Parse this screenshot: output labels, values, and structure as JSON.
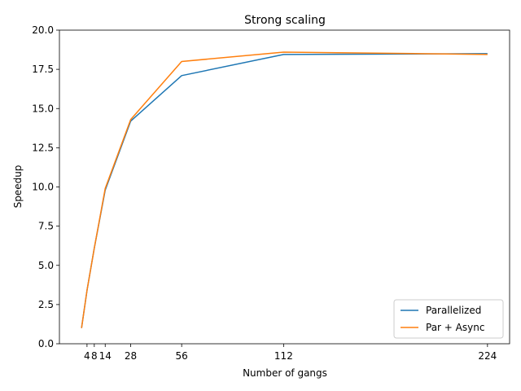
{
  "chart_data": {
    "type": "line",
    "title": "Strong scaling",
    "xlabel": "Number of gangs",
    "ylabel": "Speedup",
    "x": [
      1,
      4,
      8,
      14,
      28,
      56,
      112,
      224
    ],
    "xticks": [
      4,
      8,
      14,
      28,
      56,
      112,
      224
    ],
    "xtick_labels": [
      "4",
      "8",
      "14",
      "28",
      "56",
      "112",
      "224"
    ],
    "xlim": [
      -11.15,
      236.15
    ],
    "ylim": [
      0,
      20
    ],
    "yticks": [
      0,
      2.5,
      5,
      7.5,
      10,
      12.5,
      15,
      17.5,
      20
    ],
    "ytick_labels": [
      "0.0",
      "2.5",
      "5.0",
      "7.5",
      "10.0",
      "12.5",
      "15.0",
      "17.5",
      "20.0"
    ],
    "grid": false,
    "legend_position": "lower-right",
    "series": [
      {
        "name": "Parallelized",
        "color": "#1f77b4",
        "values": [
          1.0,
          3.4,
          6.1,
          9.8,
          14.2,
          17.1,
          18.45,
          18.5
        ]
      },
      {
        "name": "Par + Async",
        "color": "#ff7f0e",
        "values": [
          1.0,
          3.4,
          6.1,
          9.9,
          14.3,
          18.0,
          18.6,
          18.45
        ]
      }
    ]
  }
}
